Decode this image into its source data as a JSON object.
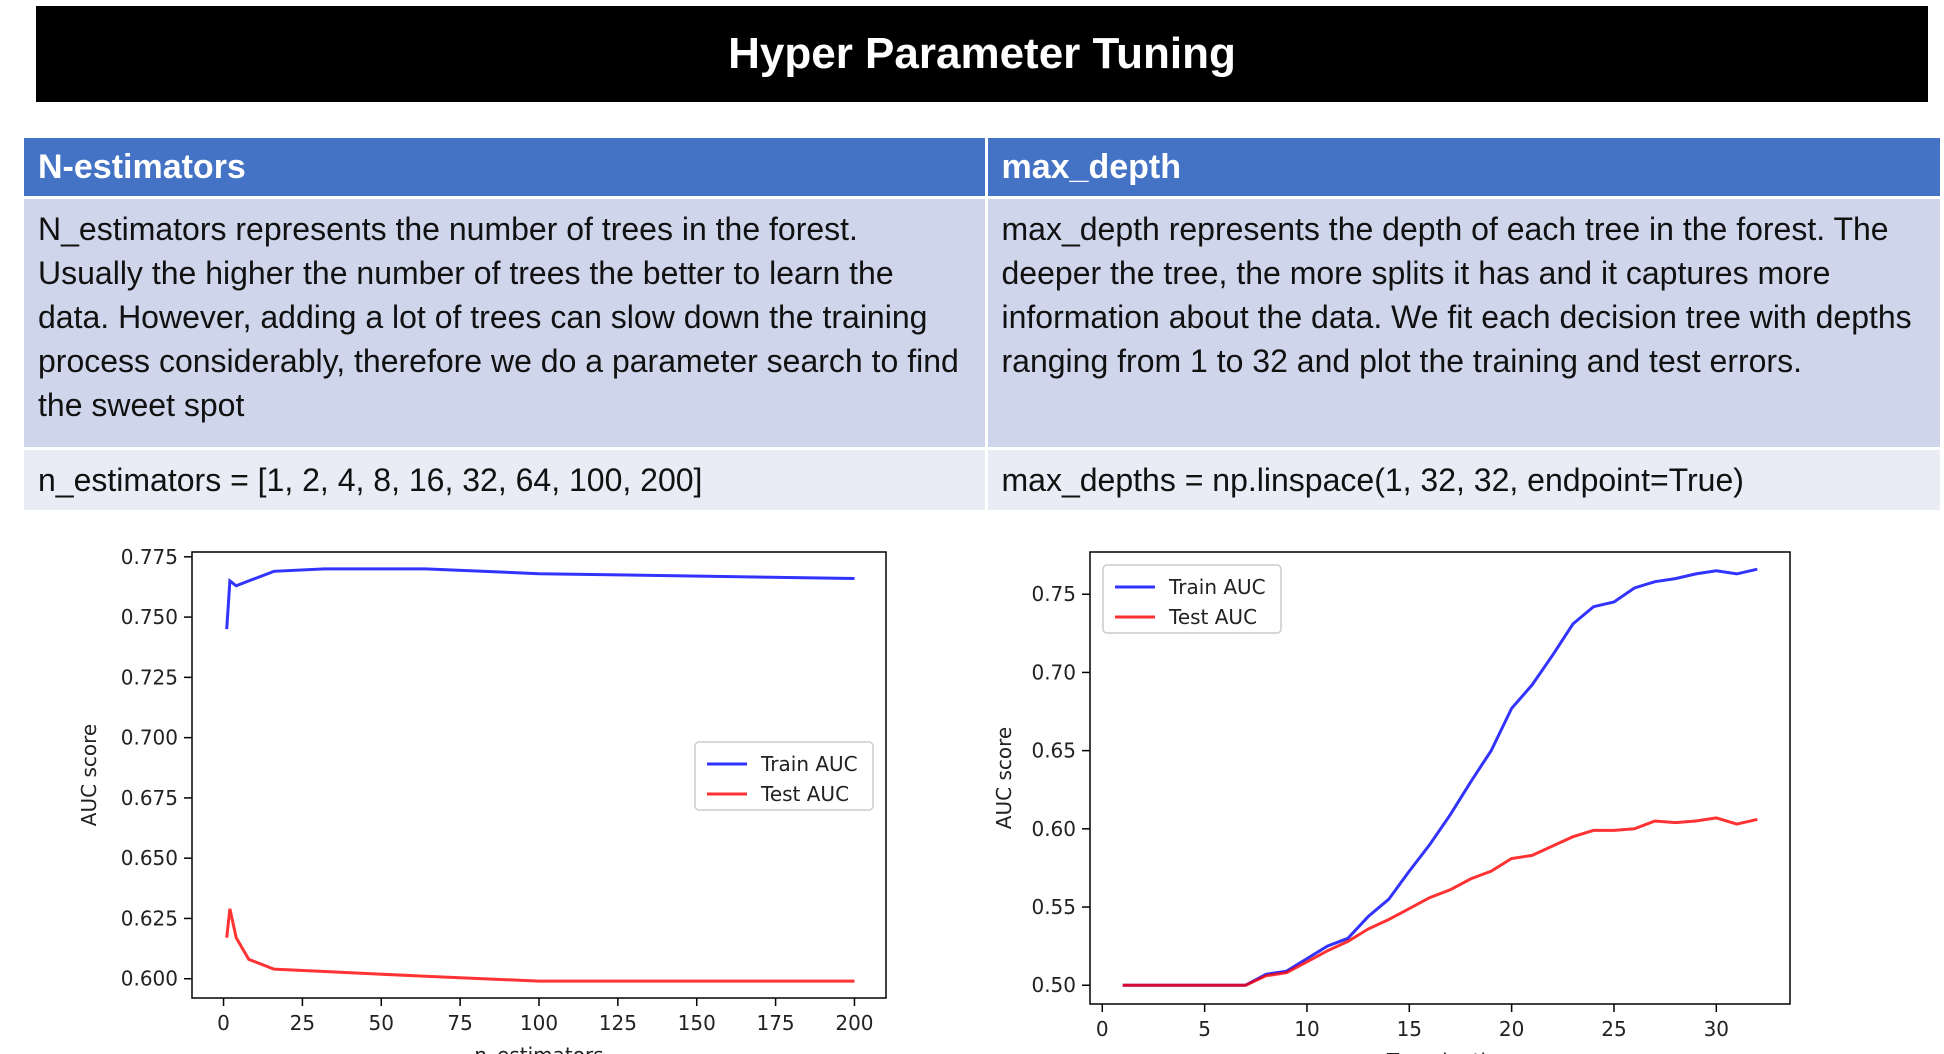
{
  "slide": {
    "title": "Hyper Parameter Tuning"
  },
  "table": {
    "headers": [
      "N-estimators",
      "max_depth"
    ],
    "descriptions": [
      "N_estimators represents the number of trees in the forest. Usually the higher the number of trees the better to learn the data. However, adding a lot of trees can slow down the training process considerably, therefore we do a parameter search to find the sweet spot",
      "max_depth represents the depth of each tree in the forest. The deeper the tree, the more splits it has and it captures more information about the data. We fit each decision tree with depths ranging from 1 to 32 and plot the training and test errors."
    ],
    "code": [
      "n_estimators = [1, 2, 4, 8, 16, 32, 64, 100, 200]",
      "max_depths = np.linspace(1, 32, 32, endpoint=True)"
    ]
  },
  "chart_data": [
    {
      "type": "line",
      "xlabel": "n_estimators",
      "ylabel": "AUC score",
      "xlim": [
        -10,
        210
      ],
      "ylim": [
        0.592,
        0.777
      ],
      "xticks": [
        0,
        25,
        50,
        75,
        100,
        125,
        150,
        175,
        200
      ],
      "yticks": [
        0.6,
        0.625,
        0.65,
        0.675,
        0.7,
        0.725,
        0.75,
        0.775
      ],
      "tick_labels_y": [
        "0.600",
        "0.625",
        "0.650",
        "0.675",
        "0.700",
        "0.725",
        "0.750",
        "0.775"
      ],
      "legend": "center-right",
      "grid": false,
      "x": [
        1,
        2,
        4,
        8,
        16,
        32,
        64,
        100,
        200
      ],
      "series": [
        {
          "name": "Train AUC",
          "color": "#0000ff",
          "values": [
            0.745,
            0.765,
            0.763,
            0.765,
            0.769,
            0.77,
            0.77,
            0.768,
            0.766
          ]
        },
        {
          "name": "Test AUC",
          "color": "#ff0000",
          "values": [
            0.617,
            0.629,
            0.617,
            0.608,
            0.604,
            0.603,
            0.601,
            0.599,
            0.599
          ]
        }
      ]
    },
    {
      "type": "line",
      "xlabel": "Tree depth",
      "ylabel": "AUC score",
      "xlim": [
        -0.6,
        33.6
      ],
      "ylim": [
        0.488,
        0.777
      ],
      "xticks": [
        0,
        5,
        10,
        15,
        20,
        25,
        30
      ],
      "yticks": [
        0.5,
        0.55,
        0.6,
        0.65,
        0.7,
        0.75
      ],
      "tick_labels_y": [
        "0.50",
        "0.55",
        "0.60",
        "0.65",
        "0.70",
        "0.75"
      ],
      "legend": "top-left",
      "grid": false,
      "x": [
        1,
        2,
        3,
        4,
        5,
        6,
        7,
        8,
        9,
        10,
        11,
        12,
        13,
        14,
        15,
        16,
        17,
        18,
        19,
        20,
        21,
        22,
        23,
        24,
        25,
        26,
        27,
        28,
        29,
        30,
        31,
        32
      ],
      "series": [
        {
          "name": "Train AUC",
          "color": "#0000ff",
          "values": [
            0.5,
            0.5,
            0.5,
            0.5,
            0.5,
            0.5,
            0.5,
            0.507,
            0.509,
            0.517,
            0.525,
            0.53,
            0.544,
            0.555,
            0.573,
            0.59,
            0.609,
            0.63,
            0.65,
            0.677,
            0.692,
            0.711,
            0.731,
            0.742,
            0.745,
            0.754,
            0.758,
            0.76,
            0.763,
            0.765,
            0.763,
            0.766
          ]
        },
        {
          "name": "Test AUC",
          "color": "#ff0000",
          "values": [
            0.5,
            0.5,
            0.5,
            0.5,
            0.5,
            0.5,
            0.5,
            0.506,
            0.508,
            0.515,
            0.522,
            0.528,
            0.536,
            0.542,
            0.549,
            0.556,
            0.561,
            0.568,
            0.573,
            0.581,
            0.583,
            0.589,
            0.595,
            0.599,
            0.599,
            0.6,
            0.605,
            0.604,
            0.605,
            0.607,
            0.603,
            0.606
          ]
        }
      ]
    }
  ]
}
